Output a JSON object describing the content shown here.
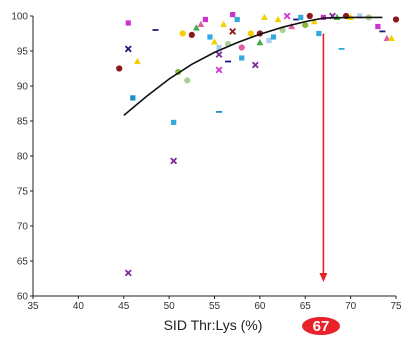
{
  "chart_data": {
    "type": "scatter",
    "title": "",
    "xlabel": "SID Thr:Lys (%)",
    "ylabel": "",
    "xlim": [
      35,
      75
    ],
    "ylim": [
      60,
      100
    ],
    "x_ticks": [
      "35",
      "40",
      "45",
      "50",
      "55",
      "60",
      "65",
      "70",
      "75"
    ],
    "y_ticks": [
      "60",
      "65",
      "70",
      "75",
      "80",
      "85",
      "90",
      "95",
      "100"
    ],
    "grid": false,
    "legend": "none",
    "optimum": {
      "x": 67,
      "label": "67",
      "color": "#e8212b"
    },
    "fit_curve": {
      "color": "#111111",
      "points": [
        [
          45,
          85.8
        ],
        [
          47.5,
          88.5
        ],
        [
          50,
          91.0
        ],
        [
          52.5,
          93.1
        ],
        [
          55,
          94.8
        ],
        [
          57.5,
          96.2
        ],
        [
          60,
          97.4
        ],
        [
          62.5,
          98.4
        ],
        [
          65,
          99.2
        ],
        [
          67,
          99.7
        ],
        [
          70,
          99.8
        ],
        [
          72.5,
          99.8
        ],
        [
          73.5,
          99.8
        ]
      ]
    },
    "points": [
      {
        "x": 44.5,
        "y": 92.5,
        "color": "#8b1a1a",
        "shape": "circle"
      },
      {
        "x": 45.5,
        "y": 99.0,
        "color": "#cc33cc",
        "shape": "square"
      },
      {
        "x": 45.5,
        "y": 95.3,
        "color": "#1a1a7a",
        "shape": "x"
      },
      {
        "x": 46.5,
        "y": 93.5,
        "color": "#f2d000",
        "shape": "triangle"
      },
      {
        "x": 46.0,
        "y": 88.3,
        "color": "#1a8fd0",
        "shape": "square"
      },
      {
        "x": 45.5,
        "y": 63.3,
        "color": "#7a2a9a",
        "shape": "x"
      },
      {
        "x": 48.5,
        "y": 98.0,
        "color": "#1a1a7a",
        "shape": "dash"
      },
      {
        "x": 50.5,
        "y": 84.8,
        "color": "#33aadd",
        "shape": "square"
      },
      {
        "x": 50.5,
        "y": 79.3,
        "color": "#7a2a9a",
        "shape": "x"
      },
      {
        "x": 51.0,
        "y": 92.0,
        "color": "#8bb83a",
        "shape": "circle"
      },
      {
        "x": 51.5,
        "y": 97.5,
        "color": "#f2d000",
        "shape": "circle"
      },
      {
        "x": 52.0,
        "y": 90.8,
        "color": "#a8d090",
        "shape": "circle"
      },
      {
        "x": 52.5,
        "y": 97.3,
        "color": "#8b1a1a",
        "shape": "circle"
      },
      {
        "x": 53.0,
        "y": 98.3,
        "color": "#44aa44",
        "shape": "triangle"
      },
      {
        "x": 53.5,
        "y": 98.8,
        "color": "#e060a0",
        "shape": "triangle"
      },
      {
        "x": 54.0,
        "y": 99.5,
        "color": "#cc33cc",
        "shape": "square"
      },
      {
        "x": 54.5,
        "y": 97.0,
        "color": "#33aadd",
        "shape": "square"
      },
      {
        "x": 55.0,
        "y": 96.3,
        "color": "#f2d000",
        "shape": "triangle"
      },
      {
        "x": 55.5,
        "y": 95.5,
        "color": "#aaccee",
        "shape": "square"
      },
      {
        "x": 55.5,
        "y": 94.5,
        "color": "#7a2a9a",
        "shape": "x"
      },
      {
        "x": 55.5,
        "y": 92.3,
        "color": "#cc33cc",
        "shape": "x"
      },
      {
        "x": 55.5,
        "y": 86.3,
        "color": "#1a8fd0",
        "shape": "dash"
      },
      {
        "x": 56.0,
        "y": 98.8,
        "color": "#f2d000",
        "shape": "triangle"
      },
      {
        "x": 56.5,
        "y": 96.0,
        "color": "#a8d090",
        "shape": "circle"
      },
      {
        "x": 56.5,
        "y": 93.5,
        "color": "#1a1a7a",
        "shape": "dash"
      },
      {
        "x": 57.0,
        "y": 100.2,
        "color": "#cc33cc",
        "shape": "square"
      },
      {
        "x": 57.0,
        "y": 97.8,
        "color": "#8b1a1a",
        "shape": "x"
      },
      {
        "x": 57.5,
        "y": 99.5,
        "color": "#33aadd",
        "shape": "square"
      },
      {
        "x": 58.0,
        "y": 95.5,
        "color": "#e060a0",
        "shape": "circle"
      },
      {
        "x": 58.0,
        "y": 94.0,
        "color": "#33aadd",
        "shape": "square"
      },
      {
        "x": 59.0,
        "y": 97.5,
        "color": "#f2d000",
        "shape": "circle"
      },
      {
        "x": 59.5,
        "y": 93.0,
        "color": "#7a2a9a",
        "shape": "x"
      },
      {
        "x": 60.0,
        "y": 97.5,
        "color": "#8b1a1a",
        "shape": "circle"
      },
      {
        "x": 60.0,
        "y": 96.2,
        "color": "#44aa44",
        "shape": "triangle"
      },
      {
        "x": 60.5,
        "y": 99.8,
        "color": "#f2d000",
        "shape": "triangle"
      },
      {
        "x": 61.0,
        "y": 96.5,
        "color": "#aaccee",
        "shape": "square"
      },
      {
        "x": 61.5,
        "y": 97.0,
        "color": "#33aadd",
        "shape": "square"
      },
      {
        "x": 62.0,
        "y": 99.5,
        "color": "#f2d000",
        "shape": "triangle"
      },
      {
        "x": 62.5,
        "y": 98.0,
        "color": "#a8d090",
        "shape": "circle"
      },
      {
        "x": 63.0,
        "y": 100.0,
        "color": "#cc33cc",
        "shape": "x"
      },
      {
        "x": 63.5,
        "y": 98.5,
        "color": "#e060a0",
        "shape": "triangle"
      },
      {
        "x": 64.0,
        "y": 99.5,
        "color": "#1a1a7a",
        "shape": "dash"
      },
      {
        "x": 64.5,
        "y": 99.8,
        "color": "#33aadd",
        "shape": "square"
      },
      {
        "x": 65.0,
        "y": 98.7,
        "color": "#8bb83a",
        "shape": "circle"
      },
      {
        "x": 65.5,
        "y": 100.0,
        "color": "#8b1a1a",
        "shape": "circle"
      },
      {
        "x": 66.0,
        "y": 99.2,
        "color": "#f2d000",
        "shape": "triangle"
      },
      {
        "x": 66.5,
        "y": 97.5,
        "color": "#33aadd",
        "shape": "square"
      },
      {
        "x": 67.0,
        "y": 99.8,
        "color": "#cc33cc",
        "shape": "square"
      },
      {
        "x": 68.0,
        "y": 100.0,
        "color": "#7a2a9a",
        "shape": "x"
      },
      {
        "x": 68.5,
        "y": 99.8,
        "color": "#44aa44",
        "shape": "triangle"
      },
      {
        "x": 69.0,
        "y": 95.3,
        "color": "#33aadd",
        "shape": "dash"
      },
      {
        "x": 69.5,
        "y": 100.0,
        "color": "#8b1a1a",
        "shape": "circle"
      },
      {
        "x": 70.0,
        "y": 99.8,
        "color": "#f2d000",
        "shape": "triangle"
      },
      {
        "x": 71.0,
        "y": 100.0,
        "color": "#aaccee",
        "shape": "square"
      },
      {
        "x": 72.0,
        "y": 99.8,
        "color": "#a8d090",
        "shape": "circle"
      },
      {
        "x": 73.0,
        "y": 98.5,
        "color": "#cc33cc",
        "shape": "square"
      },
      {
        "x": 73.5,
        "y": 97.8,
        "color": "#1a1a7a",
        "shape": "dash"
      },
      {
        "x": 74.0,
        "y": 96.8,
        "color": "#e060a0",
        "shape": "triangle"
      },
      {
        "x": 74.5,
        "y": 96.8,
        "color": "#f2d000",
        "shape": "triangle"
      },
      {
        "x": 75.0,
        "y": 99.5,
        "color": "#8b1a1a",
        "shape": "circle"
      }
    ]
  }
}
